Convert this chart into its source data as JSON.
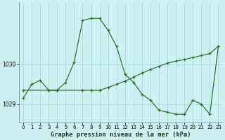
{
  "title": "Graphe pression niveau de la mer (hPa)",
  "background_color": "#cdf0f0",
  "grid_color": "#aadede",
  "line_color": "#2d6e2d",
  "xlim": [
    -0.5,
    23.5
  ],
  "ylim": [
    1028.55,
    1031.55
  ],
  "yticks": [
    1029,
    1030
  ],
  "xticks": [
    0,
    1,
    2,
    3,
    4,
    5,
    6,
    7,
    8,
    9,
    10,
    11,
    12,
    13,
    14,
    15,
    16,
    17,
    18,
    19,
    20,
    21,
    22,
    23
  ],
  "line1_x": [
    0,
    1,
    2,
    3,
    4,
    5,
    6,
    7,
    8,
    9,
    10,
    11,
    12,
    13,
    14,
    15,
    16,
    17,
    18,
    19,
    20,
    21,
    22,
    23
  ],
  "line1_y": [
    1029.15,
    1029.5,
    1029.6,
    1029.35,
    1029.35,
    1029.55,
    1030.05,
    1031.1,
    1031.15,
    1031.15,
    1030.85,
    1030.45,
    1029.75,
    1029.55,
    1029.25,
    1029.1,
    1028.85,
    1028.8,
    1028.75,
    1028.75,
    1029.1,
    1029.0,
    1028.75,
    1030.45
  ],
  "line2_x": [
    0,
    3,
    4,
    7,
    8,
    9,
    10,
    11,
    12,
    13,
    14,
    15,
    16,
    17,
    18,
    19,
    20,
    21,
    22,
    23
  ],
  "line2_y": [
    1029.35,
    1029.35,
    1029.35,
    1029.35,
    1029.35,
    1029.35,
    1029.42,
    1029.5,
    1029.58,
    1029.68,
    1029.78,
    1029.87,
    1029.95,
    1030.03,
    1030.08,
    1030.12,
    1030.17,
    1030.22,
    1030.27,
    1030.45
  ]
}
